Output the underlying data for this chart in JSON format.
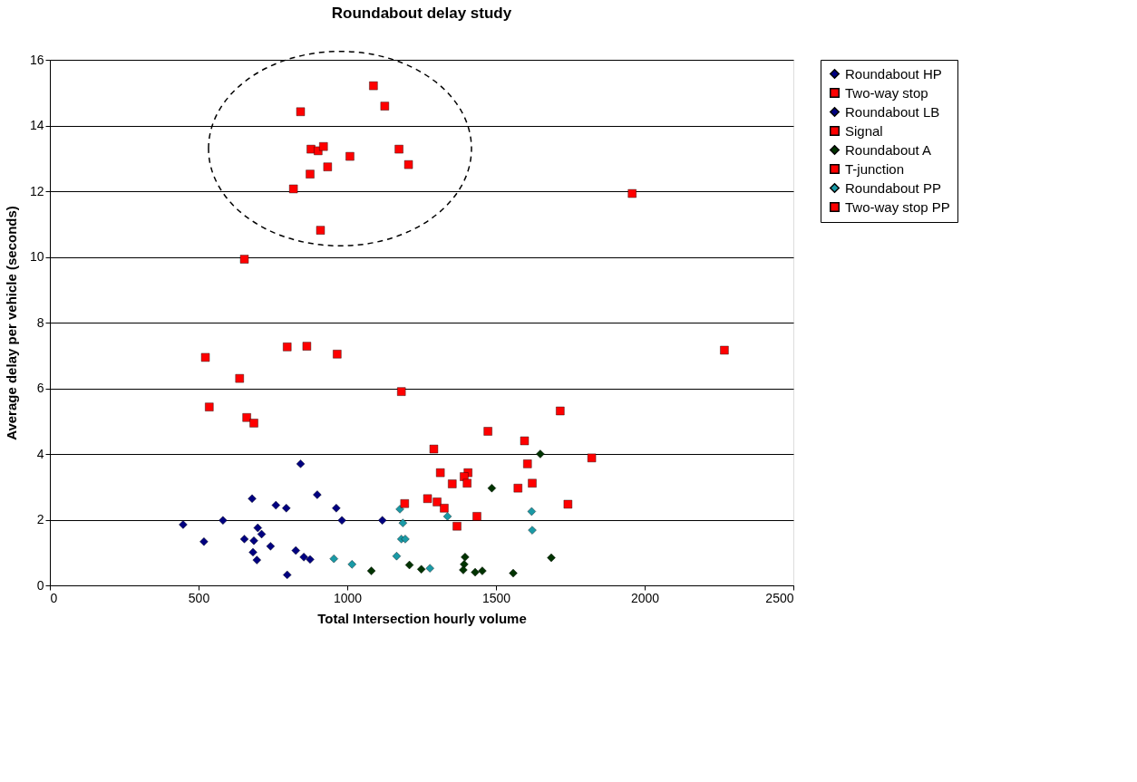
{
  "chart_data": {
    "type": "scatter",
    "title": "Roundabout delay study",
    "xlabel": "Total Intersection hourly volume",
    "ylabel": "Average delay per vehicle (seconds)",
    "xlim": [
      0,
      2500
    ],
    "xticks": [
      0,
      500,
      1000,
      1500,
      2000,
      2500
    ],
    "ylim": [
      0,
      16
    ],
    "yticks": [
      0,
      2,
      4,
      6,
      8,
      10,
      12,
      14,
      16
    ],
    "grid": "y",
    "legend": "right",
    "series": [
      {
        "name": "Roundabout HP",
        "color": "#000080",
        "marker": "diamond",
        "x": [
          843,
          680,
          760,
          795,
          899,
          963,
          982,
          1118,
          582,
          448,
          518
        ],
        "values": [
          3.7,
          2.64,
          2.44,
          2.35,
          2.76,
          2.35,
          1.98,
          1.98,
          1.98,
          1.85,
          1.33
        ]
      },
      {
        "name": "Two-way stop",
        "color": "#ff0000",
        "marker": "square",
        "x": [
          1088,
          1126,
          843,
          878,
          902,
          920,
          1009,
          1174,
          1206,
          934,
          875,
          819,
          910,
          654
        ],
        "values": [
          15.21,
          14.59,
          14.42,
          13.28,
          13.23,
          13.36,
          13.06,
          13.28,
          12.81,
          12.74,
          12.52,
          12.07,
          10.81,
          9.93
        ]
      },
      {
        "name": "Roundabout LB",
        "color": "#000080",
        "marker": "diamond",
        "x": [
          654,
          699,
          712,
          742,
          683,
          686,
          696,
          827,
          854,
          875,
          798
        ],
        "values": [
          1.41,
          1.75,
          1.56,
          1.19,
          1.01,
          1.36,
          0.77,
          1.06,
          0.86,
          0.79,
          0.32
        ]
      },
      {
        "name": "Signal",
        "color": "#ff0000",
        "marker": "square",
        "x": [
          1958,
          2268,
          1182,
          1473,
          1596,
          1822,
          1716,
          1606,
          1622,
          1574,
          1742
        ],
        "values": [
          11.93,
          7.16,
          5.9,
          4.69,
          4.4,
          3.88,
          5.31,
          3.7,
          3.11,
          2.96,
          2.47
        ]
      },
      {
        "name": "Roundabout A",
        "color": "#003300",
        "marker": "diamond",
        "x": [
          1649,
          1486,
          1396,
          1393,
          1390,
          1430,
          1454,
          1558,
          1686,
          1081,
          1209,
          1249
        ],
        "values": [
          4.0,
          2.96,
          0.86,
          0.64,
          0.47,
          0.4,
          0.44,
          0.37,
          0.84,
          0.44,
          0.62,
          0.49
        ]
      },
      {
        "name": "T-junction",
        "color": "#ff0000",
        "marker": "square",
        "x": [
          798,
          864,
          966,
          523,
          638,
          536,
          662,
          686
        ],
        "values": [
          7.26,
          7.28,
          7.04,
          6.94,
          6.3,
          5.43,
          5.11,
          4.94
        ]
      },
      {
        "name": "Roundabout PP",
        "color": "#1a9aa6",
        "marker": "diamond",
        "x": [
          1177,
          1187,
          1182,
          1195,
          1166,
          1278,
          955,
          1016,
          1337,
          1620,
          1622
        ],
        "values": [
          2.32,
          1.9,
          1.41,
          1.41,
          0.89,
          0.52,
          0.81,
          0.64,
          2.1,
          2.25,
          1.68
        ]
      },
      {
        "name": "Two-way stop PP",
        "color": "#ff0000",
        "marker": "square",
        "x": [
          1291,
          1313,
          1406,
          1393,
          1403,
          1353,
          1270,
          1302,
          1193,
          1326,
          1369,
          1436
        ],
        "values": [
          4.15,
          3.43,
          3.43,
          3.31,
          3.11,
          3.09,
          2.64,
          2.54,
          2.49,
          2.35,
          1.8,
          2.1
        ]
      }
    ]
  }
}
